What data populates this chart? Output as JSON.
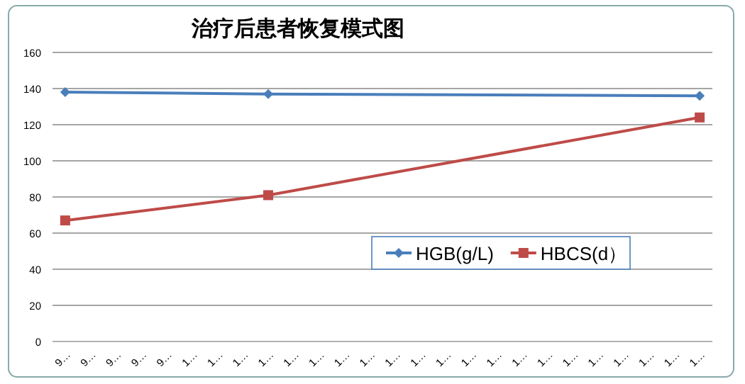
{
  "chart_data": {
    "type": "line",
    "title": "治疗后患者恢复模式图",
    "categories": [
      "9…",
      "9…",
      "9…",
      "9…",
      "9…",
      "1…",
      "1…",
      "1…",
      "1…",
      "1…",
      "1…",
      "1…",
      "1…",
      "1…",
      "1…",
      "1…",
      "1…",
      "1…",
      "1…",
      "1…",
      "1…",
      "1…",
      "1…",
      "1…",
      "1…",
      "1…"
    ],
    "series": [
      {
        "name": "HGB(g/L)",
        "color": "#4a7ebb",
        "marker": "diamond",
        "values": [
          138,
          null,
          null,
          null,
          null,
          null,
          null,
          null,
          137,
          null,
          null,
          null,
          null,
          null,
          null,
          null,
          null,
          null,
          null,
          null,
          null,
          null,
          null,
          null,
          null,
          136
        ]
      },
      {
        "name": "HBCS(d）",
        "color": "#be4b48",
        "marker": "square",
        "values": [
          67,
          null,
          null,
          null,
          null,
          null,
          null,
          null,
          81,
          null,
          null,
          null,
          null,
          null,
          null,
          null,
          null,
          null,
          null,
          null,
          null,
          null,
          null,
          null,
          null,
          124
        ]
      }
    ],
    "ylim": [
      0,
      160
    ],
    "yticks": [
      0,
      20,
      40,
      60,
      80,
      100,
      120,
      140,
      160
    ],
    "grid": "y",
    "legend": "right"
  }
}
